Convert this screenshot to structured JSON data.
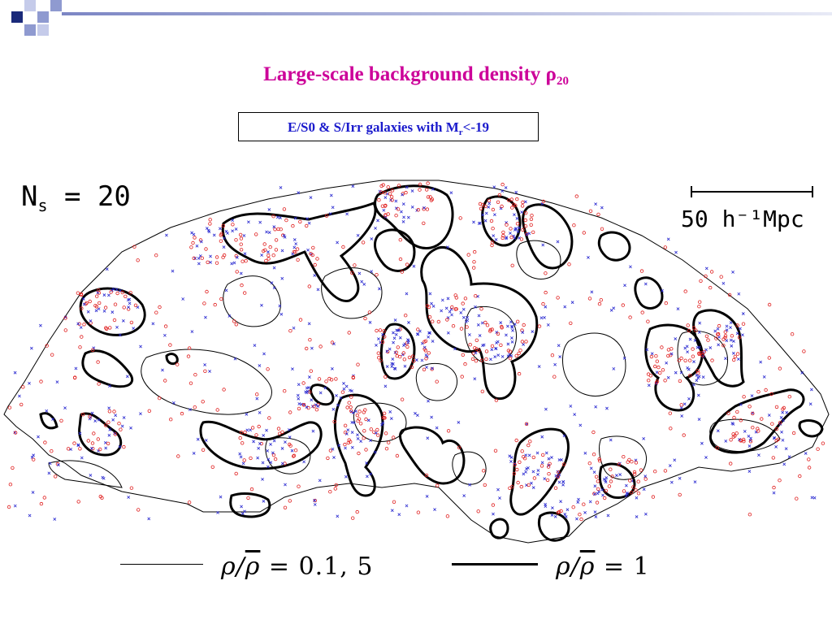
{
  "title": {
    "text": "Large-scale background density ",
    "symbol": "ρ",
    "sub": "20",
    "color": "#cc0099"
  },
  "subtitle": {
    "text": "E/S0 & S/Irr galaxies  with M",
    "sub": "r",
    "suffix": "<-19",
    "color": "#1a1acc"
  },
  "map": {
    "ns_label": "N",
    "ns_sub": "s",
    "ns_value": " = 20",
    "scale_label": "50 h⁻¹Mpc",
    "point_colors": {
      "early_type": "#e02020",
      "late_type": "#2828d0"
    }
  },
  "legend": {
    "thin": {
      "label_prefix": "ρ/",
      "label_bar": "ρ",
      "label_suffix": " = 0.1, 5"
    },
    "thick": {
      "label_prefix": "ρ/",
      "label_bar": "ρ",
      "label_suffix": " = 1"
    }
  },
  "decor": {
    "square_colors": [
      "#1a2a7a",
      "#8f9ad0",
      "#c5cbea"
    ]
  }
}
